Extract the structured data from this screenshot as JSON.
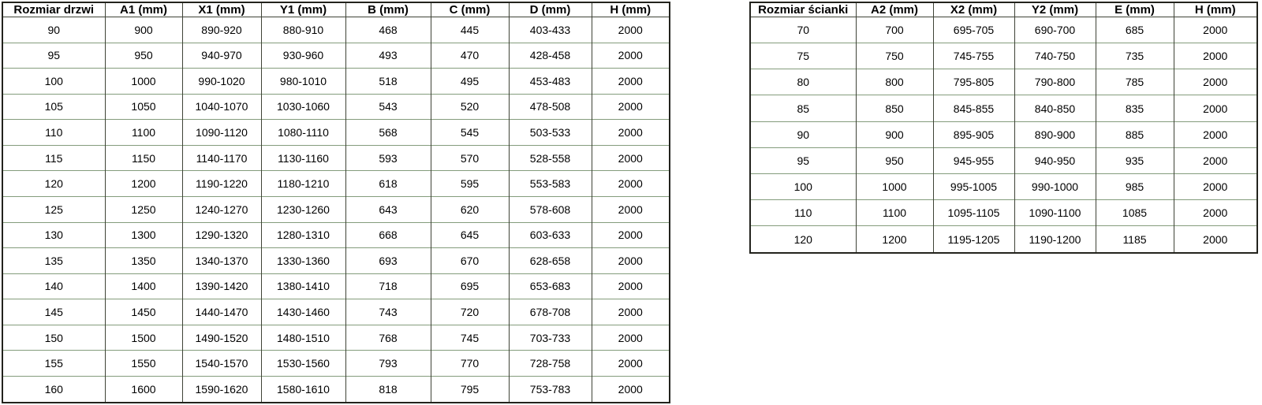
{
  "colors": {
    "background": "#ffffff",
    "text": "#000000",
    "outer_border": "#23231d",
    "grid_vertical": "#3f4337",
    "grid_horizontal": "#849c7c"
  },
  "tables": [
    {
      "title": "Rozmiar drzwi",
      "headers": [
        "Rozmiar drzwi",
        "A1 (mm)",
        "X1 (mm)",
        "Y1 (mm)",
        "B (mm)",
        "C (mm)",
        "D (mm)",
        "H (mm)"
      ],
      "rows": [
        [
          "90",
          "900",
          "890-920",
          "880-910",
          "468",
          "445",
          "403-433",
          "2000"
        ],
        [
          "95",
          "950",
          "940-970",
          "930-960",
          "493",
          "470",
          "428-458",
          "2000"
        ],
        [
          "100",
          "1000",
          "990-1020",
          "980-1010",
          "518",
          "495",
          "453-483",
          "2000"
        ],
        [
          "105",
          "1050",
          "1040-1070",
          "1030-1060",
          "543",
          "520",
          "478-508",
          "2000"
        ],
        [
          "110",
          "1100",
          "1090-1120",
          "1080-1110",
          "568",
          "545",
          "503-533",
          "2000"
        ],
        [
          "115",
          "1150",
          "1140-1170",
          "1130-1160",
          "593",
          "570",
          "528-558",
          "2000"
        ],
        [
          "120",
          "1200",
          "1190-1220",
          "1180-1210",
          "618",
          "595",
          "553-583",
          "2000"
        ],
        [
          "125",
          "1250",
          "1240-1270",
          "1230-1260",
          "643",
          "620",
          "578-608",
          "2000"
        ],
        [
          "130",
          "1300",
          "1290-1320",
          "1280-1310",
          "668",
          "645",
          "603-633",
          "2000"
        ],
        [
          "135",
          "1350",
          "1340-1370",
          "1330-1360",
          "693",
          "670",
          "628-658",
          "2000"
        ],
        [
          "140",
          "1400",
          "1390-1420",
          "1380-1410",
          "718",
          "695",
          "653-683",
          "2000"
        ],
        [
          "145",
          "1450",
          "1440-1470",
          "1430-1460",
          "743",
          "720",
          "678-708",
          "2000"
        ],
        [
          "150",
          "1500",
          "1490-1520",
          "1480-1510",
          "768",
          "745",
          "703-733",
          "2000"
        ],
        [
          "155",
          "1550",
          "1540-1570",
          "1530-1560",
          "793",
          "770",
          "728-758",
          "2000"
        ],
        [
          "160",
          "1600",
          "1590-1620",
          "1580-1610",
          "818",
          "795",
          "753-783",
          "2000"
        ]
      ]
    },
    {
      "title": "Rozmiar ścianki",
      "headers": [
        "Rozmiar ścianki",
        "A2 (mm)",
        "X2 (mm)",
        "Y2 (mm)",
        "E (mm)",
        "H (mm)"
      ],
      "rows": [
        [
          "70",
          "700",
          "695-705",
          "690-700",
          "685",
          "2000"
        ],
        [
          "75",
          "750",
          "745-755",
          "740-750",
          "735",
          "2000"
        ],
        [
          "80",
          "800",
          "795-805",
          "790-800",
          "785",
          "2000"
        ],
        [
          "85",
          "850",
          "845-855",
          "840-850",
          "835",
          "2000"
        ],
        [
          "90",
          "900",
          "895-905",
          "890-900",
          "885",
          "2000"
        ],
        [
          "95",
          "950",
          "945-955",
          "940-950",
          "935",
          "2000"
        ],
        [
          "100",
          "1000",
          "995-1005",
          "990-1000",
          "985",
          "2000"
        ],
        [
          "110",
          "1100",
          "1095-1105",
          "1090-1100",
          "1085",
          "2000"
        ],
        [
          "120",
          "1200",
          "1195-1205",
          "1190-1200",
          "1185",
          "2000"
        ]
      ]
    }
  ]
}
